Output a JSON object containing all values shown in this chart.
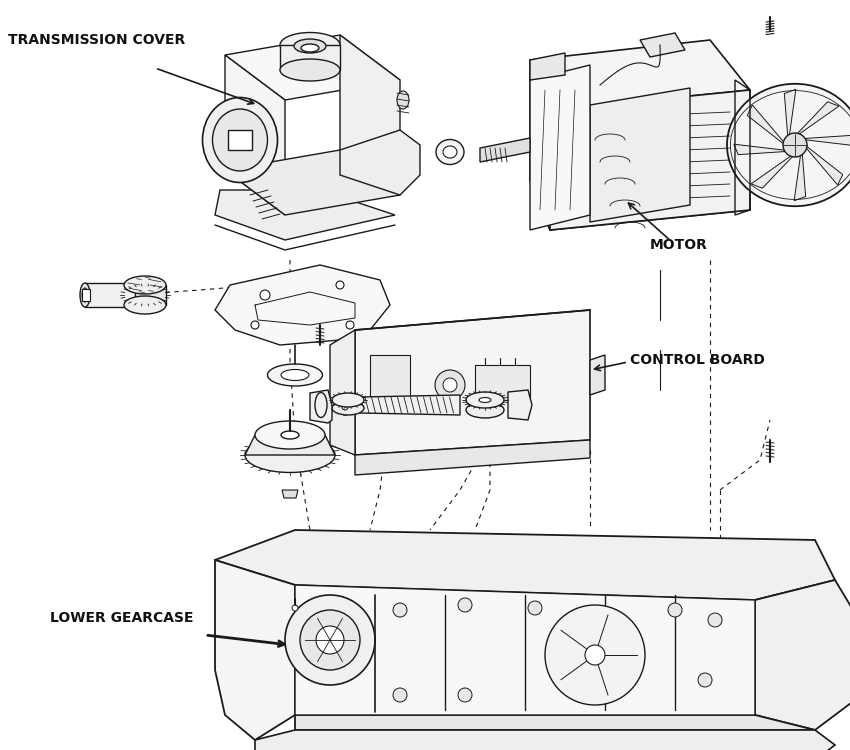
{
  "background_color": "#ffffff",
  "line_color": "#1a1a1a",
  "fig_width": 8.5,
  "fig_height": 7.5,
  "dpi": 100,
  "labels": {
    "transmission_cover": "TRANSMISSION COVER",
    "motor": "MOTOR",
    "control_board": "CONTROL BOARD",
    "lower_gearcase": "LOWER GEARCASE"
  }
}
